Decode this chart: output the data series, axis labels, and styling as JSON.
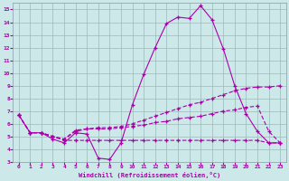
{
  "background_color": "#cce8e8",
  "grid_color": "#99bbbb",
  "line_color": "#aa00aa",
  "spine_color": "#8899aa",
  "xlim": [
    -0.5,
    23.5
  ],
  "ylim": [
    3,
    15.5
  ],
  "xlabel": "Windchill (Refroidissement éolien,°C)",
  "xticks": [
    0,
    1,
    2,
    3,
    4,
    5,
    6,
    7,
    8,
    9,
    10,
    11,
    12,
    13,
    14,
    15,
    16,
    17,
    18,
    19,
    20,
    21,
    22,
    23
  ],
  "yticks": [
    3,
    4,
    5,
    6,
    7,
    8,
    9,
    10,
    11,
    12,
    13,
    14,
    15
  ],
  "line1_x": [
    0,
    1,
    2,
    3,
    4,
    5,
    6,
    7,
    8,
    9,
    10,
    11,
    12,
    13,
    14,
    15,
    16,
    17,
    18,
    19,
    20,
    21,
    22,
    23
  ],
  "line1_y": [
    6.7,
    5.3,
    5.3,
    4.8,
    4.5,
    5.3,
    5.2,
    3.3,
    3.2,
    4.5,
    7.5,
    9.9,
    12.0,
    13.9,
    14.4,
    14.3,
    15.3,
    14.2,
    11.9,
    9.0,
    6.8,
    5.4,
    4.5,
    4.5
  ],
  "line2_x": [
    0,
    1,
    2,
    3,
    4,
    5,
    6,
    7,
    8,
    9,
    10,
    11,
    12,
    13,
    14,
    15,
    16,
    17,
    18,
    19,
    20,
    21,
    22,
    23
  ],
  "line2_y": [
    6.7,
    5.3,
    5.3,
    5.0,
    4.8,
    5.4,
    5.6,
    5.7,
    5.7,
    5.8,
    6.0,
    6.3,
    6.6,
    6.9,
    7.2,
    7.5,
    7.7,
    8.0,
    8.3,
    8.6,
    8.8,
    8.9,
    8.9,
    9.0
  ],
  "line3_x": [
    0,
    1,
    2,
    3,
    4,
    5,
    6,
    7,
    8,
    9,
    10,
    11,
    12,
    13,
    14,
    15,
    16,
    17,
    18,
    19,
    20,
    21,
    22,
    23
  ],
  "line3_y": [
    6.7,
    5.3,
    5.3,
    5.0,
    4.8,
    5.5,
    5.6,
    5.6,
    5.6,
    5.7,
    5.8,
    5.9,
    6.1,
    6.2,
    6.4,
    6.5,
    6.6,
    6.8,
    7.0,
    7.1,
    7.3,
    7.4,
    5.4,
    4.5
  ],
  "line4_x": [
    0,
    1,
    2,
    3,
    4,
    5,
    6,
    7,
    8,
    9,
    10,
    11,
    12,
    13,
    14,
    15,
    16,
    17,
    18,
    19,
    20,
    21,
    22,
    23
  ],
  "line4_y": [
    6.7,
    5.3,
    5.3,
    5.0,
    4.7,
    4.7,
    4.7,
    4.7,
    4.7,
    4.7,
    4.7,
    4.7,
    4.7,
    4.7,
    4.7,
    4.7,
    4.7,
    4.7,
    4.7,
    4.7,
    4.7,
    4.7,
    4.5,
    4.5
  ]
}
